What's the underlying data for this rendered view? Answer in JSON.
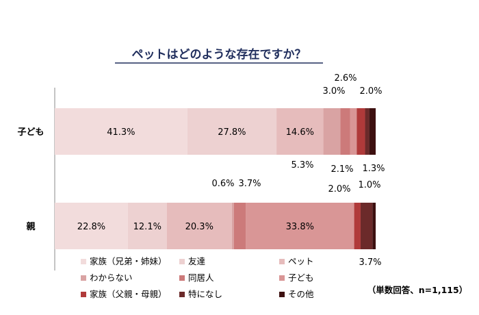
{
  "chart_data": {
    "type": "bar",
    "orientation": "horizontal",
    "stacked": true,
    "normalized_percent": true,
    "title": "ペットはどのような存在ですか？",
    "note": "（単数回答、n=1,115）",
    "categories": [
      "子ども",
      "親"
    ],
    "series": [
      {
        "name": "家族（兄弟・姉妹）",
        "color": "#f2dcdc",
        "values": [
          41.3,
          22.8
        ],
        "labels": [
          "41.3%",
          "22.8%"
        ]
      },
      {
        "name": "友達",
        "color": "#edd1d1",
        "values": [
          27.8,
          12.1
        ],
        "labels": [
          "27.8%",
          "12.1%"
        ]
      },
      {
        "name": "ペット",
        "color": "#e6bcbc",
        "values": [
          14.6,
          20.3
        ],
        "labels": [
          "14.6%",
          "20.3%"
        ]
      },
      {
        "name": "わからない",
        "color": "#d9a3a3",
        "values": [
          5.3,
          0.6
        ],
        "labels": [
          "5.3%",
          "0.6%"
        ]
      },
      {
        "name": "同居人",
        "color": "#cc7a7a",
        "values": [
          3.0,
          3.7
        ],
        "labels": [
          "3.0%",
          "3.7%"
        ]
      },
      {
        "name": "子ども",
        "color": "#d99696",
        "values": [
          2.1,
          33.8
        ],
        "labels": [
          "2.1%",
          "33.8%"
        ]
      },
      {
        "name": "家族（父親・母親）",
        "color": "#b03a3a",
        "values": [
          2.6,
          2.0
        ],
        "labels": [
          "2.6%",
          "2.0%"
        ]
      },
      {
        "name": "特になし",
        "color": "#6b2a2a",
        "values": [
          1.3,
          3.7
        ],
        "labels": [
          "1.3%",
          "3.7%"
        ]
      },
      {
        "name": "その他",
        "color": "#3d1010",
        "values": [
          2.0,
          1.0
        ],
        "labels": [
          "2.0%",
          "1.0%"
        ]
      }
    ],
    "legend": {
      "position": "bottom-left",
      "columns": 3
    },
    "grid": false
  }
}
